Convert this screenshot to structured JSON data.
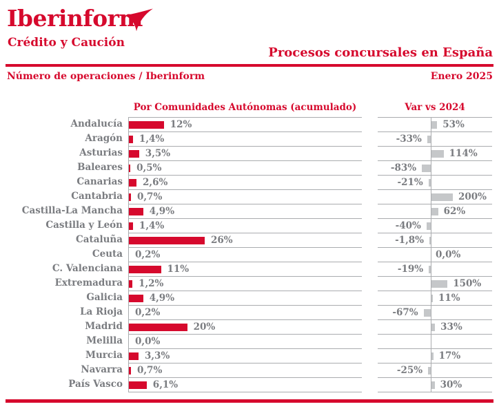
{
  "brand": {
    "logo_text": "Iberinform",
    "logo_subtext": "Crédito y Caución",
    "accent_red": "#D6092D",
    "bar_red": "#D6092D",
    "bar_gray": "#C5C7C9",
    "text_gray": "#7A7C80",
    "grid_gray": "#A9ABAE"
  },
  "header": {
    "title": "Procesos concursales en España",
    "source": "Número de operaciones / Iberinform",
    "period": "Enero 2025"
  },
  "chart_data": {
    "type": "bar",
    "orientation": "horizontal",
    "grid": true,
    "left_title": "Por Comunidades Autónomas (acumulado)",
    "right_title": "Var vs 2024",
    "categories": [
      "Andalucía",
      "Aragón",
      "Asturias",
      "Baleares",
      "Canarias",
      "Cantabria",
      "Castilla-La Mancha",
      "Castilla y León",
      "Cataluña",
      "Ceuta",
      "C. Valenciana",
      "Extremadura",
      "Galicia",
      "La Rioja",
      "Madrid",
      "Melilla",
      "Murcia",
      "Navarra",
      "País Vasco"
    ],
    "series": [
      {
        "name": "Por Comunidades Autónomas (acumulado)",
        "unit": "%",
        "xlim": [
          0,
          80
        ],
        "values": [
          12,
          1.4,
          3.5,
          0.5,
          2.6,
          0.7,
          4.9,
          1.4,
          26,
          0.2,
          11,
          1.2,
          4.9,
          0.2,
          20,
          0.0,
          3.3,
          0.7,
          6.1
        ],
        "labels": [
          "12%",
          "1,4%",
          "3,5%",
          "0,5%",
          "2,6%",
          "0,7%",
          "4,9%",
          "1,4%",
          "26%",
          "0,2%",
          "11%",
          "1,2%",
          "4,9%",
          "0,2%",
          "20%",
          "0,0%",
          "3,3%",
          "0,7%",
          "6,1%"
        ]
      },
      {
        "name": "Var vs 2024",
        "unit": "%",
        "xlim": [
          -500,
          575
        ],
        "values": [
          53,
          -33,
          114,
          -83,
          -21,
          200,
          62,
          -40,
          -1.8,
          0.0,
          -19,
          150,
          11,
          -67,
          33,
          null,
          17,
          -25,
          30
        ],
        "labels": [
          "53%",
          "-33%",
          "114%",
          "-83%",
          "-21%",
          "200%",
          "62%",
          "-40%",
          "-1,8%",
          "0,0%",
          "-19%",
          "150%",
          "11%",
          "-67%",
          "33%",
          "",
          "17%",
          "-25%",
          "30%"
        ]
      }
    ]
  }
}
